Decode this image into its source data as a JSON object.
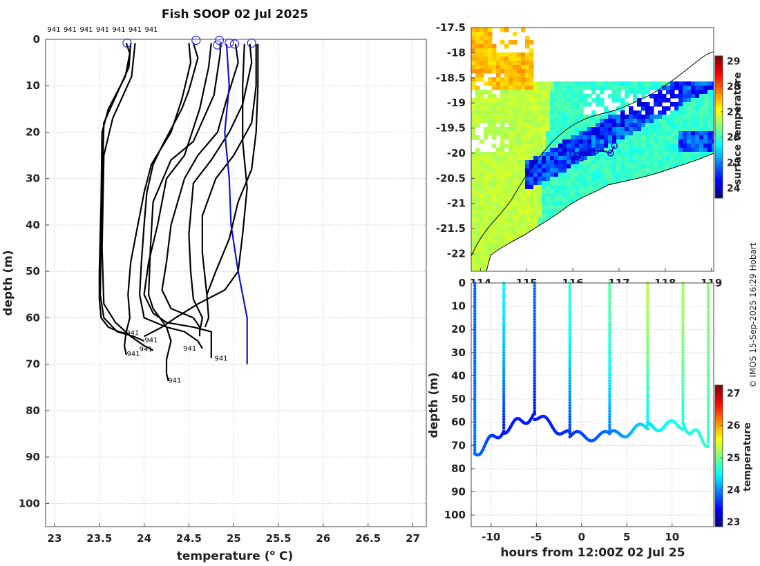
{
  "title": "Fish SOOP 02 Jul 2025",
  "credit": "© IMOS 15-Sep-2025 16:29 Hobart",
  "colors": {
    "profile": "#000000",
    "climatology": "#1010d0",
    "marker": "#2020ff",
    "grid": "#c8c8c8"
  },
  "chart_data": [
    {
      "id": "profiles",
      "type": "line",
      "title": "Fish SOOP 02 Jul 2025",
      "xlabel": "temperature (",
      "xlabel_sup": "o",
      "xlabel_end": " C)",
      "ylabel": "depth (m)",
      "xlim": [
        22.9,
        27.15
      ],
      "ylim": [
        0,
        105
      ],
      "y_inverted": true,
      "xticks": [
        23,
        23.5,
        24,
        24.5,
        25,
        25.5,
        26,
        26.5,
        27
      ],
      "xtick_labels": [
        "23",
        "23.5",
        "24",
        "24.5",
        "25",
        "25.5",
        "26",
        "26.5",
        "27"
      ],
      "yticks": [
        0,
        10,
        20,
        30,
        40,
        50,
        60,
        70,
        80,
        90,
        100
      ],
      "ytick_labels": [
        "0",
        "10",
        "20",
        "30",
        "40",
        "50",
        "60",
        "70",
        "80",
        "90",
        "100"
      ],
      "top_labels": [
        "941",
        "941",
        "941",
        "941",
        "941",
        "941",
        "941"
      ],
      "series": [
        {
          "name": "941",
          "label_at": [
            23.87,
            63.7
          ],
          "points": [
            [
              23.8,
              0.8
            ],
            [
              23.84,
              3
            ],
            [
              23.79,
              8
            ],
            [
              23.6,
              15
            ],
            [
              23.53,
              20
            ],
            [
              23.52,
              35
            ],
            [
              23.5,
              50
            ],
            [
              23.5,
              56
            ],
            [
              23.52,
              60
            ],
            [
              23.6,
              62
            ],
            [
              23.72,
              63
            ],
            [
              23.83,
              63.5
            ]
          ]
        },
        {
          "name": "941",
          "label_at": [
            24.08,
            65.3
          ],
          "points": [
            [
              23.85,
              0.8
            ],
            [
              23.83,
              6
            ],
            [
              23.55,
              18
            ],
            [
              23.52,
              40
            ],
            [
              23.51,
              55
            ],
            [
              23.55,
              60
            ],
            [
              23.7,
              63
            ],
            [
              23.88,
              64
            ],
            [
              24.0,
              65
            ]
          ]
        },
        {
          "name": "941",
          "label_at": [
            24.02,
            67.2
          ],
          "points": [
            [
              23.9,
              0.8
            ],
            [
              23.86,
              8
            ],
            [
              23.65,
              17
            ],
            [
              23.55,
              25
            ],
            [
              23.53,
              45
            ],
            [
              23.55,
              57
            ],
            [
              23.68,
              61
            ],
            [
              23.85,
              64
            ],
            [
              24.0,
              66
            ],
            [
              24.1,
              67
            ]
          ]
        },
        {
          "name": "941",
          "label_at": [
            23.88,
            68.3
          ],
          "points": [
            [
              24.5,
              0.8
            ],
            [
              24.52,
              5
            ],
            [
              24.42,
              13
            ],
            [
              24.3,
              20
            ],
            [
              24.08,
              27
            ],
            [
              24.0,
              33
            ],
            [
              23.93,
              40
            ],
            [
              23.85,
              48
            ],
            [
              23.82,
              55
            ],
            [
              23.84,
              60
            ],
            [
              23.8,
              63
            ],
            [
              23.78,
              66
            ],
            [
              23.8,
              68
            ]
          ]
        },
        {
          "name": "941",
          "label_at": [
            24.51,
            67.1
          ],
          "points": [
            [
              24.55,
              0.8
            ],
            [
              24.6,
              4
            ],
            [
              24.5,
              11
            ],
            [
              24.42,
              15
            ],
            [
              24.2,
              23
            ],
            [
              24.1,
              27
            ],
            [
              24.03,
              33
            ],
            [
              24.0,
              40
            ],
            [
              23.97,
              48
            ],
            [
              23.95,
              55
            ],
            [
              24.0,
              60
            ],
            [
              24.25,
              62
            ],
            [
              24.45,
              63
            ],
            [
              24.6,
              65
            ],
            [
              24.65,
              66.6
            ]
          ]
        },
        {
          "name": "941",
          "label_at": [
            24.86,
            69.2
          ],
          "points": [
            [
              24.75,
              0.8
            ],
            [
              24.72,
              6
            ],
            [
              24.62,
              15
            ],
            [
              24.45,
              25
            ],
            [
              24.25,
              30
            ],
            [
              24.15,
              40
            ],
            [
              24.05,
              48
            ],
            [
              24.0,
              55
            ],
            [
              24.1,
              59
            ],
            [
              24.25,
              61
            ],
            [
              24.55,
              62
            ],
            [
              24.75,
              63
            ],
            [
              24.75,
              68.7
            ]
          ]
        },
        {
          "name": "941",
          "label_at": [
            24.34,
            74
          ],
          "points": [
            [
              24.85,
              0.8
            ],
            [
              24.85,
              3
            ],
            [
              24.78,
              12
            ],
            [
              24.55,
              22
            ],
            [
              24.3,
              26
            ],
            [
              24.1,
              35
            ],
            [
              24.07,
              45
            ],
            [
              24.05,
              55
            ],
            [
              24.1,
              58
            ],
            [
              24.25,
              62
            ],
            [
              24.3,
              65
            ],
            [
              24.25,
              69
            ],
            [
              24.25,
              72
            ],
            [
              24.27,
              73.6
            ]
          ]
        },
        {
          "name": "941",
          "points": [
            [
              25.02,
              1
            ],
            [
              25.05,
              5
            ],
            [
              24.92,
              13
            ],
            [
              24.82,
              20
            ],
            [
              24.6,
              25
            ],
            [
              24.45,
              30
            ],
            [
              24.3,
              40
            ],
            [
              24.25,
              48
            ],
            [
              24.2,
              54
            ],
            [
              24.3,
              58
            ],
            [
              24.55,
              60
            ],
            [
              24.62,
              62
            ],
            [
              24.62,
              64
            ]
          ]
        },
        {
          "name": "941",
          "points": [
            [
              25.18,
              1
            ],
            [
              25.2,
              5
            ],
            [
              25.1,
              14
            ],
            [
              24.95,
              20
            ],
            [
              24.75,
              26
            ],
            [
              24.55,
              31
            ],
            [
              24.5,
              42
            ],
            [
              24.52,
              50
            ],
            [
              24.55,
              56
            ],
            [
              24.65,
              60
            ],
            [
              24.62,
              63
            ]
          ]
        },
        {
          "name": "941",
          "points": [
            [
              25.25,
              1
            ],
            [
              25.25,
              10
            ],
            [
              25.2,
              18
            ],
            [
              25.0,
              25
            ],
            [
              24.8,
              30
            ],
            [
              24.65,
              38
            ],
            [
              24.65,
              46
            ],
            [
              24.7,
              55
            ],
            [
              24.72,
              60
            ],
            [
              24.68,
              62
            ]
          ]
        },
        {
          "name": "941",
          "points": [
            [
              25.27,
              1
            ],
            [
              25.27,
              10
            ],
            [
              25.25,
              20
            ],
            [
              25.2,
              28
            ],
            [
              25.05,
              35
            ],
            [
              24.95,
              43
            ],
            [
              24.8,
              50
            ],
            [
              24.7,
              55
            ]
          ]
        },
        {
          "name": "941",
          "points": [
            [
              25.12,
              1
            ],
            [
              25.1,
              10
            ],
            [
              25.1,
              22
            ],
            [
              25.15,
              32
            ],
            [
              25.1,
              42
            ],
            [
              25.05,
              50
            ],
            [
              24.9,
              54
            ],
            [
              24.6,
              57
            ],
            [
              24.35,
              60
            ],
            [
              24.2,
              62
            ],
            [
              24.0,
              64
            ]
          ]
        }
      ],
      "climatology": {
        "name": "clim",
        "points": [
          [
            24.92,
            1
          ],
          [
            24.95,
            10
          ],
          [
            24.9,
            20
          ],
          [
            24.95,
            30
          ],
          [
            24.97,
            40
          ],
          [
            25.05,
            50
          ],
          [
            25.15,
            60
          ],
          [
            25.15,
            70
          ]
        ]
      },
      "surface_markers": [
        [
          23.81,
          0.8
        ],
        [
          24.58,
          0.2
        ],
        [
          24.84,
          0.2
        ],
        [
          24.82,
          1.2
        ],
        [
          24.95,
          0.8
        ],
        [
          25.01,
          1
        ],
        [
          25.2,
          0.8
        ]
      ]
    },
    {
      "id": "sst-map",
      "type": "heatmap",
      "colorbar_label": "surface temperature",
      "xlim": [
        113.8,
        119.05
      ],
      "ylim": [
        -22.35,
        -17.5
      ],
      "xticks": [
        114,
        115,
        116,
        117,
        118,
        119
      ],
      "xtick_labels": [
        "114",
        "115",
        "116",
        "117",
        "118",
        "119"
      ],
      "yticks": [
        -17.5,
        -18,
        -18.5,
        -19,
        -19.5,
        -20,
        -20.5,
        -21,
        -21.5,
        -22
      ],
      "ytick_labels": [
        "-17.5",
        "-18",
        "-18.5",
        "-19",
        "-19.5",
        "-20",
        "-20.5",
        "-21",
        "-21.5",
        "-22"
      ],
      "cbar_range": [
        23.6,
        29.2
      ],
      "cbar_ticks": [
        24,
        25,
        26,
        27,
        28,
        29
      ],
      "cbar_tick_labels": [
        "24",
        "25",
        "26",
        "27",
        "28",
        "29"
      ],
      "track": [
        [
          116.0,
          -20.02
        ],
        [
          116.1,
          -20.05
        ],
        [
          116.18,
          -20.1
        ],
        [
          116.12,
          -19.98
        ],
        [
          116.25,
          -19.96
        ],
        [
          116.5,
          -19.95
        ],
        [
          116.68,
          -19.96
        ],
        [
          116.82,
          -20.0
        ],
        [
          116.9,
          -19.85
        ]
      ],
      "track_markers": [
        [
          116.0,
          -20.02
        ],
        [
          116.1,
          -20.05
        ],
        [
          116.18,
          -20.1
        ],
        [
          116.25,
          -19.96
        ],
        [
          116.5,
          -19.95
        ],
        [
          116.82,
          -20.0
        ],
        [
          116.9,
          -19.85
        ]
      ]
    },
    {
      "id": "depth-time",
      "type": "scatter",
      "xlabel": "hours from 12:00Z 02 Jul 25",
      "ylabel": "depth (m)",
      "colorbar_label": "temperature",
      "xlim": [
        -12.2,
        14.6
      ],
      "ylim": [
        0,
        105
      ],
      "y_inverted": true,
      "xticks": [
        -10,
        -5,
        0,
        5,
        10
      ],
      "xtick_labels": [
        "-10",
        "-5",
        "0",
        "5",
        "10"
      ],
      "yticks": [
        0,
        10,
        20,
        30,
        40,
        50,
        60,
        70,
        80,
        90,
        100
      ],
      "ytick_labels": [
        "0",
        "10",
        "20",
        "30",
        "40",
        "50",
        "60",
        "70",
        "80",
        "90",
        "100"
      ],
      "cbar_range": [
        22.85,
        27.25
      ],
      "cbar_ticks": [
        23,
        24,
        25,
        26,
        27
      ],
      "cbar_tick_labels": [
        "23",
        "24",
        "25",
        "26",
        "27"
      ],
      "casts": [
        {
          "t": -11.8,
          "bottom": 73.6,
          "t_surf": 23.85,
          "t_bot": 23.9
        },
        {
          "t": -8.6,
          "bottom": 63,
          "t_surf": 24.5,
          "t_bot": 23.5
        },
        {
          "t": -5.2,
          "bottom": 57,
          "t_surf": 23.9,
          "t_bot": 23.5
        },
        {
          "t": -1.3,
          "bottom": 66,
          "t_surf": 24.7,
          "t_bot": 23.6
        },
        {
          "t": 3.1,
          "bottom": 66,
          "t_surf": 24.9,
          "t_bot": 23.9
        },
        {
          "t": 7.3,
          "bottom": 62,
          "t_surf": 25.3,
          "t_bot": 24.4
        },
        {
          "t": 11.2,
          "bottom": 61,
          "t_surf": 25.2,
          "t_bot": 24.6
        },
        {
          "t": 14.0,
          "bottom": 69,
          "t_surf": 25.1,
          "t_bot": 24.7
        }
      ]
    }
  ]
}
